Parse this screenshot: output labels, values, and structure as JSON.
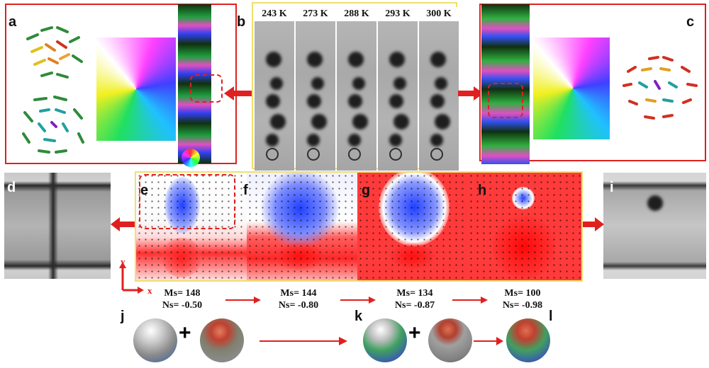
{
  "panel_labels": {
    "a": "a",
    "b": "b",
    "c": "c",
    "d": "d",
    "e": "e",
    "f": "f",
    "g": "g",
    "h": "h",
    "i": "i",
    "j": "j",
    "k": "k",
    "l": "l"
  },
  "temperatures": [
    "243 K",
    "273 K",
    "288 K",
    "293 K",
    "300 K"
  ],
  "axes": {
    "y": "y",
    "x": "x"
  },
  "stats": [
    {
      "ms": "Ms= 148",
      "ns": "Ns= -0.50"
    },
    {
      "ms": "Ms= 144",
      "ns": "Ns= -0.80"
    },
    {
      "ms": "Ms= 134",
      "ns": "Ns= -0.87"
    },
    {
      "ms": "Ms= 100",
      "ns": "Ns= -0.98"
    }
  ],
  "plus_signs": [
    "+",
    "+"
  ],
  "colors": {
    "red": "#e02020",
    "yellow": "#f1e06a",
    "blue": "#2040ff",
    "bg_red": "#ff3030"
  }
}
